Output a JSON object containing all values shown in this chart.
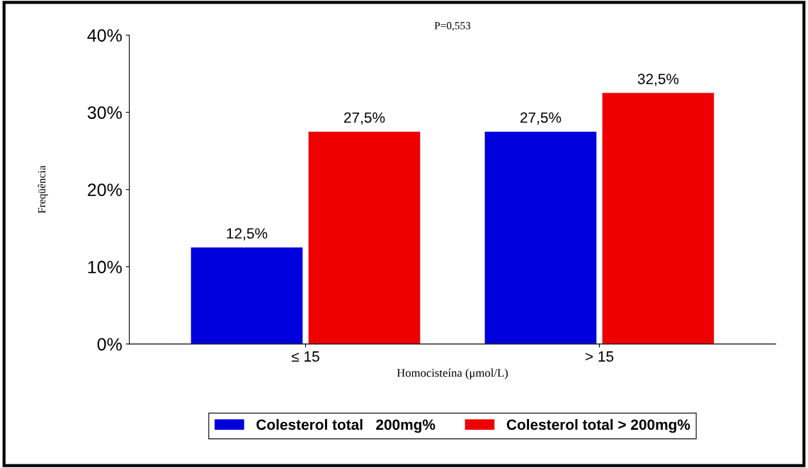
{
  "chart_data": {
    "type": "bar",
    "title": "P=0,553",
    "xlabel": "Homocisteína (μmol/L)",
    "ylabel": "Freqüência",
    "categories": [
      "≤ 15",
      "> 15"
    ],
    "series": [
      {
        "name": "Colesterol total   200mg%",
        "color": "#0000dd",
        "values": [
          12.5,
          27.5
        ],
        "value_labels": [
          "12,5%",
          "27,5%"
        ]
      },
      {
        "name": "Colesterol total > 200mg%",
        "color": "#ee0000",
        "values": [
          27.5,
          32.5
        ],
        "value_labels": [
          "27,5%",
          "32,5%"
        ]
      }
    ],
    "ylim": [
      0,
      40
    ],
    "yticks": [
      {
        "value": 0,
        "label": "0%"
      },
      {
        "value": 10,
        "label": "10%"
      },
      {
        "value": 20,
        "label": "20%"
      },
      {
        "value": 30,
        "label": "30%"
      },
      {
        "value": 40,
        "label": "40%"
      }
    ],
    "grid": false,
    "legend": "bottom"
  }
}
